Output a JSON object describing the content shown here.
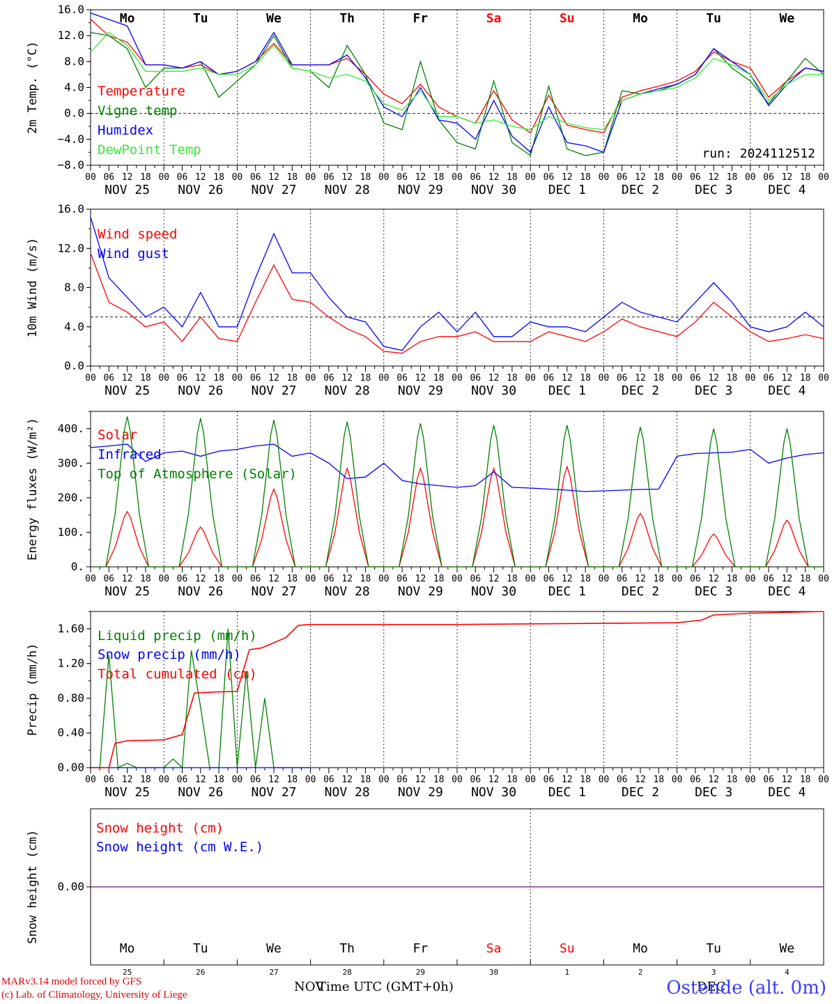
{
  "footer": {
    "model": "MARv3.14 model forced by GFS",
    "credit": "(c) Lab. of Climatology, University of Liege",
    "station": "Ostende (alt. 0m)",
    "x_title": "Time UTC (GMT+0h)",
    "month_left": "NOV",
    "month_right": "DEC"
  },
  "colors": {
    "red": "#ff0000",
    "green": "#008000",
    "blue": "#0000ff",
    "lightgreen": "#33ee33",
    "weekend": "#ff0000",
    "snow_line": "#7d2f8c"
  },
  "days": [
    "Mo",
    "Tu",
    "We",
    "Th",
    "Fr",
    "Sa",
    "Su",
    "Mo",
    "Tu",
    "We"
  ],
  "weekend_flags": [
    false,
    false,
    false,
    false,
    false,
    true,
    true,
    false,
    false,
    false
  ],
  "day_numbers": [
    "25",
    "26",
    "27",
    "28",
    "29",
    "30",
    "1",
    "2",
    "3",
    "4"
  ],
  "date_labels": [
    "NOV 25",
    "NOV 26",
    "NOV 27",
    "NOV 28",
    "NOV 29",
    "NOV 30",
    "DEC  1",
    "DEC  2",
    "DEC  3",
    "DEC  4"
  ],
  "hour_labels": [
    "00",
    "06",
    "12",
    "18"
  ],
  "chart_data": [
    {
      "type": "line",
      "id": "temp",
      "ylabel": "2m Temp. (°C)",
      "ylim": [
        -8,
        16
      ],
      "ticks": [
        "−8.0",
        "−4.0",
        "0.0",
        "4.0",
        "8.0",
        "12.0",
        "16.0"
      ],
      "tick_values": [
        -8,
        -4,
        0,
        4,
        8,
        12,
        16
      ],
      "reference_line": 0,
      "annotation": "run: 2024112512",
      "x_hours": [
        0,
        6,
        12,
        18,
        24,
        30,
        36,
        42,
        48,
        54,
        60,
        66,
        72,
        78,
        84,
        90,
        96,
        102,
        108,
        114,
        120,
        126,
        132,
        138,
        144,
        150,
        156,
        162,
        168,
        174,
        180,
        186,
        192,
        198,
        204,
        210,
        216,
        222,
        228,
        234,
        240
      ],
      "series": [
        {
          "name": "Temperature",
          "color": "red",
          "values": [
            14.5,
            12,
            11,
            7.5,
            7.5,
            7,
            7.5,
            6,
            6.5,
            8,
            10.8,
            7.5,
            7.5,
            7.5,
            8.5,
            6,
            3,
            1.5,
            4.5,
            1,
            -0.5,
            -1.5,
            3.5,
            -1,
            -3,
            2.8,
            -1.8,
            -2.5,
            -3,
            2.5,
            3.5,
            4.2,
            5,
            6.5,
            9.5,
            8,
            7,
            2.5,
            5,
            7,
            6.5
          ]
        },
        {
          "name": "Vigne temp",
          "color": "green",
          "values": [
            12.5,
            12,
            10,
            4,
            7,
            7,
            8,
            2.5,
            5,
            7.5,
            12,
            7,
            6.5,
            4,
            10.5,
            6,
            -1.5,
            -2.5,
            8,
            -1,
            -4.5,
            -5.5,
            5,
            -4.5,
            -6.5,
            4.2,
            -5.5,
            -6.5,
            -6,
            3.5,
            3,
            3.5,
            4.5,
            6,
            10,
            7,
            5,
            1.5,
            5,
            8.5,
            6
          ]
        },
        {
          "name": "Humidex",
          "color": "blue",
          "values": [
            15.5,
            14.5,
            13.5,
            7.5,
            7.5,
            7,
            8,
            6,
            6.5,
            8,
            12.5,
            7.5,
            7.5,
            7.5,
            9,
            5.5,
            1,
            -0.5,
            4,
            -1,
            -1.5,
            -4,
            2,
            -3.5,
            -6,
            1,
            -4.5,
            -5,
            -6,
            2,
            3,
            3.8,
            4.5,
            6,
            10,
            8,
            6,
            1.2,
            4.5,
            7,
            6.5
          ]
        },
        {
          "name": "DewPoint Temp",
          "color": "lightgreen",
          "values": [
            9.5,
            12.5,
            10.5,
            6.5,
            6.5,
            6.5,
            7,
            6,
            6,
            7.5,
            10.5,
            7,
            6.5,
            5.5,
            6,
            5,
            1.5,
            0.5,
            3.5,
            -0.5,
            -0.5,
            -1.5,
            -1,
            -2,
            -2.5,
            -0.5,
            -1.5,
            -2.2,
            -2.5,
            2,
            3,
            3.5,
            4,
            5.5,
            8.5,
            7.5,
            6,
            2,
            4.5,
            6,
            6
          ]
        }
      ]
    },
    {
      "type": "line",
      "id": "wind",
      "ylabel": "10m Wind (m/s)",
      "ylim": [
        0,
        16
      ],
      "ticks": [
        "0.0",
        "4.0",
        "8.0",
        "12.0",
        "16.0"
      ],
      "tick_values": [
        0,
        4,
        8,
        12,
        16
      ],
      "reference_line": 5,
      "x_hours": [
        0,
        6,
        12,
        18,
        24,
        30,
        36,
        42,
        48,
        54,
        60,
        66,
        72,
        78,
        84,
        90,
        96,
        102,
        108,
        114,
        120,
        126,
        132,
        138,
        144,
        150,
        156,
        162,
        168,
        174,
        180,
        186,
        192,
        198,
        204,
        210,
        216,
        222,
        228,
        234,
        240
      ],
      "series": [
        {
          "name": "Wind speed",
          "color": "red",
          "values": [
            11.5,
            6.5,
            5.5,
            4,
            4.5,
            2.5,
            5,
            2.8,
            2.5,
            6.5,
            10.3,
            6.8,
            6.5,
            5,
            3.8,
            3,
            1.5,
            1.3,
            2.5,
            3,
            3,
            3.5,
            2.5,
            2.5,
            2.5,
            3.5,
            3,
            2.5,
            3.5,
            4.8,
            4,
            3.5,
            3,
            4.5,
            6.5,
            5,
            3.5,
            2.5,
            2.8,
            3.2,
            2.8
          ]
        },
        {
          "name": "Wind gust",
          "color": "blue",
          "values": [
            15.2,
            9,
            7,
            5,
            6,
            4,
            7.5,
            4,
            4,
            9,
            13.5,
            9.5,
            9.5,
            7,
            5,
            4.5,
            2,
            1.6,
            4,
            5.5,
            3.5,
            5.5,
            3,
            3,
            4.5,
            4,
            4,
            3.5,
            5,
            6.5,
            5.5,
            5,
            4.5,
            6.5,
            8.5,
            6.5,
            4,
            3.5,
            4,
            5.5,
            4
          ]
        }
      ]
    },
    {
      "type": "line",
      "id": "energy",
      "ylabel": "Energy fluxes (W/m²)",
      "ylim": [
        0,
        450
      ],
      "ticks": [
        "0.",
        "100.",
        "200.",
        "300.",
        "400."
      ],
      "tick_values": [
        0,
        100,
        200,
        300,
        400
      ],
      "x_hours": [
        0,
        6,
        12,
        18,
        24,
        30,
        36,
        42,
        48,
        54,
        60,
        66,
        72,
        78,
        84,
        90,
        96,
        102,
        108,
        114,
        120,
        126,
        132,
        138,
        144,
        150,
        156,
        162,
        168,
        174,
        180,
        186,
        192,
        198,
        204,
        210,
        216,
        222,
        228,
        234,
        240
      ],
      "series": [
        {
          "name": "Solar",
          "color": "red",
          "peak_hour": 12,
          "peaks": [
            160,
            115,
            225,
            285,
            285,
            285,
            290,
            155,
            95,
            135
          ]
        },
        {
          "name": "Infrared",
          "color": "blue",
          "values": [
            345,
            350,
            355,
            305,
            330,
            335,
            320,
            335,
            340,
            350,
            355,
            320,
            330,
            300,
            255,
            260,
            300,
            250,
            240,
            235,
            230,
            235,
            275,
            230,
            228,
            225,
            222,
            218,
            220,
            222,
            224,
            225,
            320,
            328,
            330,
            332,
            340,
            300,
            315,
            325,
            330
          ]
        },
        {
          "name": "Top of Atmosphere (Solar)",
          "color": "green",
          "peak_hour": 12,
          "peaks": [
            435,
            430,
            425,
            420,
            415,
            410,
            410,
            405,
            400,
            400
          ]
        }
      ]
    },
    {
      "type": "line",
      "id": "precip",
      "ylabel": "Precip (mm/h)",
      "ylim": [
        0,
        1.8
      ],
      "ticks": [
        "0.00",
        "0.40",
        "0.80",
        "1.20",
        "1.60"
      ],
      "tick_values": [
        0,
        0.4,
        0.8,
        1.2,
        1.6
      ],
      "x_hours": [
        0,
        3,
        6,
        9,
        12,
        15,
        18,
        21,
        24,
        27,
        30,
        33,
        36,
        39,
        42,
        45,
        48,
        51,
        54,
        57,
        60,
        63,
        66,
        69,
        72
      ],
      "series": [
        {
          "name": "Liquid precip (mm/h)",
          "color": "green",
          "values": [
            0,
            0,
            1.3,
            0,
            0.05,
            0,
            0,
            0,
            0,
            0.1,
            0,
            1.35,
            0.7,
            0,
            0,
            1.6,
            0,
            1.1,
            0,
            0.8,
            0,
            0,
            0,
            0,
            0
          ]
        },
        {
          "name": "Snow precip (mm/h)",
          "color": "blue",
          "values": [
            0,
            0,
            0,
            0,
            0,
            0,
            0,
            0,
            0,
            0,
            0,
            0,
            0,
            0,
            0,
            0,
            0,
            0,
            0,
            0,
            0,
            0,
            0,
            0,
            0
          ]
        },
        {
          "name": "Total cumulated (cm)",
          "color": "red",
          "cumulative": [
            [
              0,
              0
            ],
            [
              6,
              0
            ],
            [
              8,
              0.28
            ],
            [
              12,
              0.31
            ],
            [
              24,
              0.32
            ],
            [
              30,
              0.38
            ],
            [
              34,
              0.86
            ],
            [
              40,
              0.87
            ],
            [
              48,
              0.88
            ],
            [
              52,
              1.36
            ],
            [
              56,
              1.38
            ],
            [
              64,
              1.5
            ],
            [
              68,
              1.64
            ],
            [
              72,
              1.65
            ],
            [
              120,
              1.65
            ],
            [
              192,
              1.67
            ],
            [
              200,
              1.7
            ],
            [
              204,
              1.76
            ],
            [
              216,
              1.78
            ],
            [
              240,
              1.8
            ]
          ]
        }
      ]
    },
    {
      "type": "line",
      "id": "snow",
      "ylabel": "Snow height (cm)",
      "ylim": [
        -1,
        1
      ],
      "ticks": [
        "0.00"
      ],
      "tick_values": [
        0
      ],
      "x_hours": [
        0,
        240
      ],
      "series": [
        {
          "name": "Snow height (cm)",
          "color": "red",
          "values": [
            0,
            0
          ]
        },
        {
          "name": "Snow height (cm W.E.)",
          "color": "blue",
          "values": [
            0,
            0
          ]
        }
      ]
    }
  ]
}
